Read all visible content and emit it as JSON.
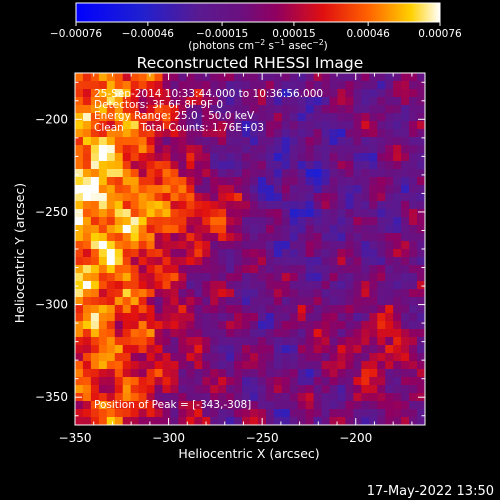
{
  "chart_data": {
    "type": "heatmap",
    "title": "Reconstructed RHESSI Image",
    "xlabel": "Heliocentric X (arcsec)",
    "ylabel": "Heliocentric Y (arcsec)",
    "xlim": [
      -350,
      -163
    ],
    "ylim": [
      -365,
      -175
    ],
    "x_ticks": [
      -350,
      -300,
      -250,
      -200
    ],
    "y_ticks": [
      -200,
      -250,
      -300,
      -350
    ],
    "x_tick_labels": [
      "−350",
      "−300",
      "−250",
      "−200"
    ],
    "y_tick_labels": [
      "−200",
      "−250",
      "−300",
      "−350"
    ],
    "colorbar": {
      "min": -0.00076,
      "max": 0.00076,
      "ticks": [
        -0.00076,
        -0.00046,
        -0.00015,
        0.00015,
        0.00046,
        0.00076
      ],
      "tick_labels": [
        "−0.00076",
        "−0.00046",
        "−0.00015",
        "0.00015",
        "0.00046",
        "0.00076"
      ],
      "unit_main": "(photons cm",
      "unit_sup1": "−2",
      "unit_mid": " s",
      "unit_sup2": "−1",
      "unit_mid2": " asec",
      "unit_sup3": "−2",
      "unit_end": ")"
    },
    "annotations": [
      "25-Sep-2014 10:33:44.000 to 10:36:56.000",
      "Detectors: 3F 6F 8F 9F 0",
      "Energy Range: 25.0 - 50.0 keV",
      "Clean     Total Counts: 1.76E+03"
    ],
    "peak_label": "Position of Peak = [-343,-308]",
    "peak": [
      -343,
      -308
    ]
  },
  "footer": {
    "timestamp": "17-May-2022 13:50"
  },
  "colors": {
    "background": "#000000",
    "foreground": "#ffffff"
  }
}
